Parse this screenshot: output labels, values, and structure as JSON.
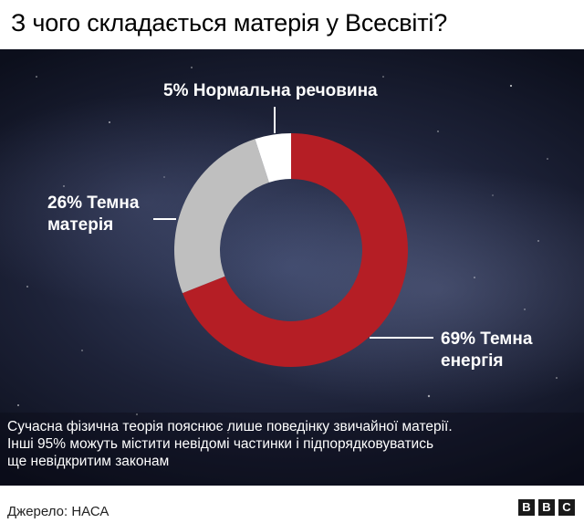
{
  "header": {
    "title": "З чого складається матерія у Всесвіті?"
  },
  "chart_data": {
    "type": "pie",
    "variant": "donut",
    "slices": [
      {
        "label": "Темна енергія",
        "value": 69,
        "color": "#b51e25",
        "label_line1": "69% Темна",
        "label_line2": "енергія"
      },
      {
        "label": "Темна матерія",
        "value": 26,
        "color": "#bfbfbf",
        "label_line1": "26% Темна",
        "label_line2": "матерія"
      },
      {
        "label": "Нормальна речовина",
        "value": 5,
        "color": "#ffffff",
        "label_line1": "5% Нормальна речовина",
        "label_line2": ""
      }
    ]
  },
  "note": {
    "line1": "Сучасна фізична теорія пояснює лише поведінку звичайної матерії.",
    "line2": "Інші 95% можуть містити невідомі частинки і підпорядковуватись",
    "line3": "ще невідкритим законам"
  },
  "footer": {
    "source": "Джерело: НАСА",
    "logo": [
      "B",
      "B",
      "C"
    ]
  }
}
